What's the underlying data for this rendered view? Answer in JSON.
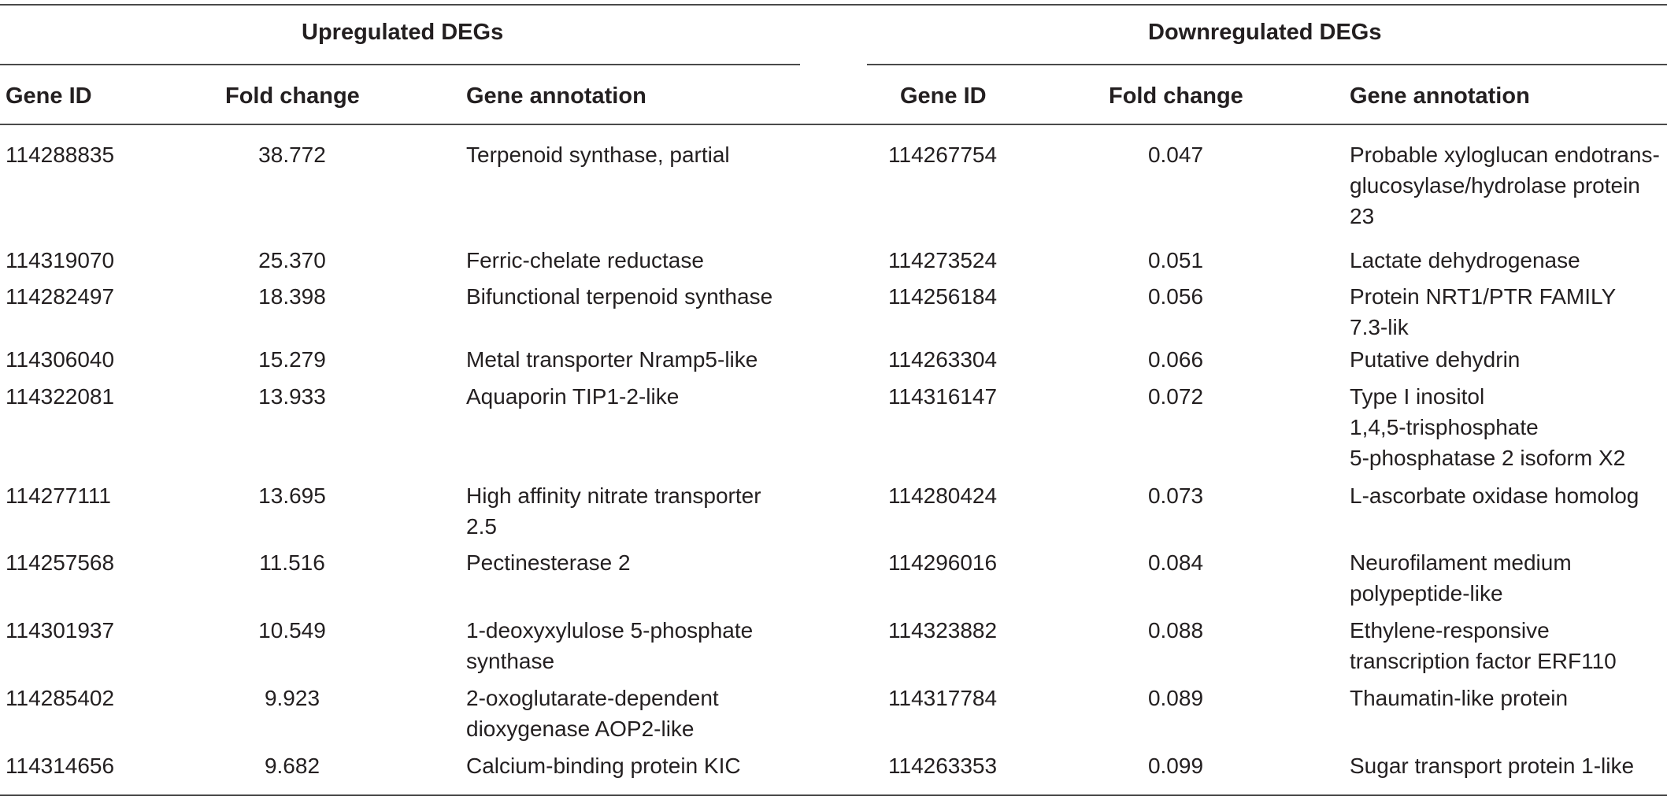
{
  "groups": {
    "up": "Upregulated DEGs",
    "down": "Downregulated DEGs"
  },
  "columns": {
    "gene_id": "Gene ID",
    "fold_change": "Fold change",
    "annotation": "Gene annotation"
  },
  "upregulated": [
    {
      "id": "114288835",
      "fc": "38.772",
      "ann": [
        "Terpenoid synthase, partial"
      ]
    },
    {
      "id": "114319070",
      "fc": "25.370",
      "ann": [
        "Ferric-chelate reductase"
      ]
    },
    {
      "id": "114282497",
      "fc": "18.398",
      "ann": [
        "Bifunctional terpenoid synthase"
      ]
    },
    {
      "id": "114306040",
      "fc": "15.279",
      "ann": [
        "Metal transporter Nramp5-like"
      ]
    },
    {
      "id": "114322081",
      "fc": "13.933",
      "ann": [
        "Aquaporin TIP1-2-like"
      ]
    },
    {
      "id": "114277111",
      "fc": "13.695",
      "ann": [
        "High affinity nitrate transporter",
        "2.5"
      ]
    },
    {
      "id": "114257568",
      "fc": "11.516",
      "ann": [
        "Pectinesterase 2"
      ]
    },
    {
      "id": "114301937",
      "fc": "10.549",
      "ann": [
        "1-deoxyxylulose 5-phosphate",
        "synthase"
      ]
    },
    {
      "id": "114285402",
      "fc": "9.923",
      "ann": [
        "2-oxoglutarate-dependent",
        "dioxygenase AOP2-like"
      ]
    },
    {
      "id": "114314656",
      "fc": "9.682",
      "ann": [
        "Calcium-binding protein KIC"
      ]
    }
  ],
  "downregulated": [
    {
      "id": "114267754",
      "fc": "0.047",
      "ann": [
        "Probable xyloglucan endotrans-",
        "glucosylase/hydrolase protein",
        "23"
      ]
    },
    {
      "id": "114273524",
      "fc": "0.051",
      "ann": [
        "Lactate dehydrogenase"
      ]
    },
    {
      "id": "114256184",
      "fc": "0.056",
      "ann": [
        "Protein NRT1/PTR FAMILY",
        "7.3-lik"
      ]
    },
    {
      "id": "114263304",
      "fc": "0.066",
      "ann": [
        "Putative dehydrin"
      ]
    },
    {
      "id": "114316147",
      "fc": "0.072",
      "ann": [
        "Type I inositol",
        "1,4,5-trisphosphate",
        "5-phosphatase 2 isoform X2"
      ]
    },
    {
      "id": "114280424",
      "fc": "0.073",
      "ann": [
        "L-ascorbate oxidase homolog"
      ]
    },
    {
      "id": "114296016",
      "fc": "0.084",
      "ann": [
        "Neurofilament medium",
        "polypeptide-like"
      ]
    },
    {
      "id": "114323882",
      "fc": "0.088",
      "ann": [
        "Ethylene-responsive",
        "transcription factor ERF110"
      ]
    },
    {
      "id": "114317784",
      "fc": "0.089",
      "ann": [
        "Thaumatin-like protein"
      ]
    },
    {
      "id": "114263353",
      "fc": "0.099",
      "ann": [
        "Sugar transport protein 1-like"
      ]
    }
  ]
}
